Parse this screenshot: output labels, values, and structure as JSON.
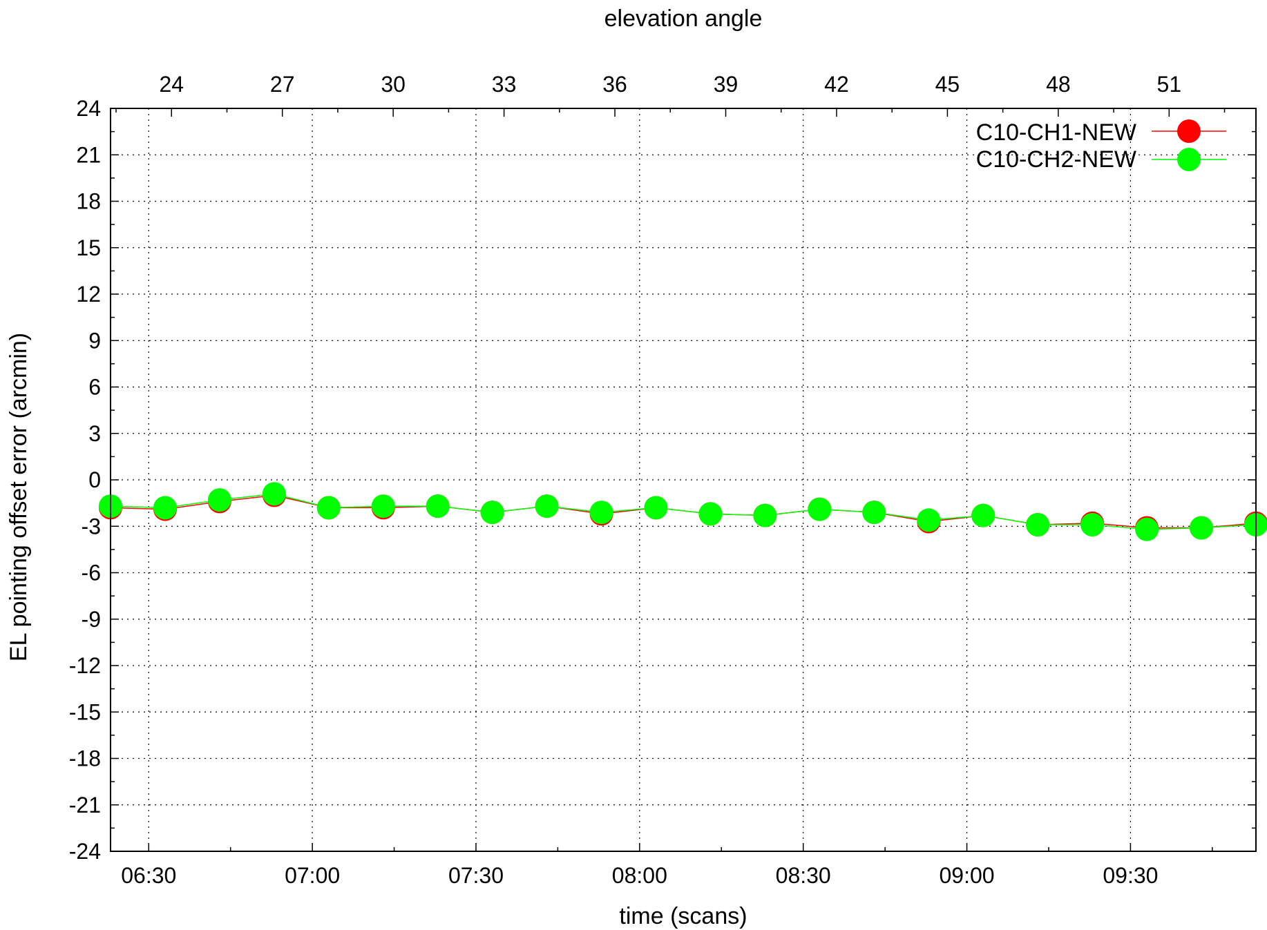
{
  "chart_data": {
    "type": "line",
    "title": "",
    "xlabel": "time (scans)",
    "x2label": "elevation angle",
    "ylabel": "EL pointing offset error (arcmin)",
    "ylim": [
      -24,
      24
    ],
    "yticks": [
      -24,
      -21,
      -18,
      -15,
      -12,
      -9,
      -6,
      -3,
      0,
      3,
      6,
      9,
      12,
      15,
      18,
      21,
      24
    ],
    "ytick_labels": [
      "-24",
      "-21",
      "-18",
      "-15",
      "-12",
      "-9",
      "-6",
      "-3",
      "0",
      "3",
      "6",
      "9",
      "12",
      "15",
      "18",
      "21",
      "24"
    ],
    "xlim": [
      "06:23",
      "09:53"
    ],
    "xticks": [
      "06:30",
      "07:00",
      "07:30",
      "08:00",
      "08:30",
      "09:00",
      "09:30"
    ],
    "x2lim": [
      22.35,
      53.35
    ],
    "x2ticks": [
      "24",
      "27",
      "30",
      "33",
      "36",
      "39",
      "42",
      "45",
      "48",
      "51"
    ],
    "grid": true,
    "legend_position": "top-right",
    "x": [
      "06:23",
      "06:33",
      "06:43",
      "06:53",
      "07:03",
      "07:13",
      "07:23",
      "07:33",
      "07:43",
      "07:53",
      "08:03",
      "08:13",
      "08:23",
      "08:33",
      "08:43",
      "08:53",
      "09:03",
      "09:13",
      "09:23",
      "09:33",
      "09:43",
      "09:53"
    ],
    "series": [
      {
        "name": "C10-CH1-NEW",
        "color": "#ff0000",
        "values": [
          -1.8,
          -1.9,
          -1.4,
          -1.0,
          -1.8,
          -1.8,
          -1.7,
          -2.1,
          -1.7,
          -2.2,
          -1.8,
          -2.2,
          -2.3,
          -1.9,
          -2.1,
          -2.7,
          -2.3,
          -2.9,
          -2.8,
          -3.1,
          -3.1,
          -2.8
        ]
      },
      {
        "name": "C10-CH2-NEW",
        "color": "#00ff00",
        "values": [
          -1.7,
          -1.8,
          -1.3,
          -0.9,
          -1.8,
          -1.7,
          -1.7,
          -2.1,
          -1.7,
          -2.1,
          -1.8,
          -2.2,
          -2.3,
          -1.9,
          -2.1,
          -2.6,
          -2.3,
          -2.9,
          -2.9,
          -3.2,
          -3.1,
          -2.9
        ]
      }
    ]
  }
}
